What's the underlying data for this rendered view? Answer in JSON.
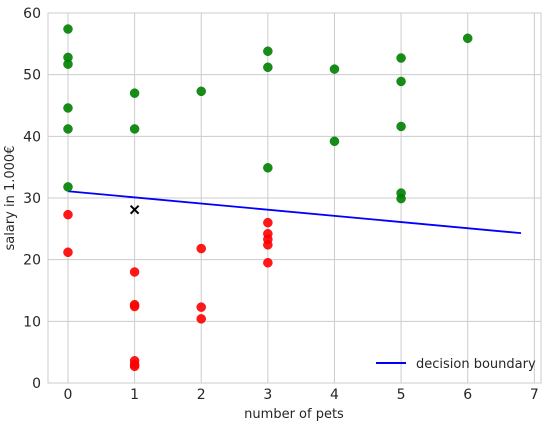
{
  "chart_data": {
    "type": "scatter",
    "title": "",
    "xlabel": "number of pets",
    "ylabel": "salary in 1.000€",
    "xlim": [
      -0.3,
      7.1
    ],
    "ylim": [
      0,
      60
    ],
    "xticks": [
      0,
      1,
      2,
      3,
      4,
      5,
      6,
      7
    ],
    "yticks": [
      0,
      10,
      20,
      30,
      40,
      50,
      60
    ],
    "grid": true,
    "legend_position": "bottom-right",
    "series": [
      {
        "color": "#008000",
        "marker": "circle",
        "points": [
          [
            0,
            57.4
          ],
          [
            0,
            52.8
          ],
          [
            0,
            51.7
          ],
          [
            0,
            44.6
          ],
          [
            0,
            41.2
          ],
          [
            0,
            31.8
          ],
          [
            1,
            47.0
          ],
          [
            1,
            41.2
          ],
          [
            2,
            47.3
          ],
          [
            3,
            53.8
          ],
          [
            3,
            51.2
          ],
          [
            3,
            34.9
          ],
          [
            4,
            50.9
          ],
          [
            4,
            39.2
          ],
          [
            5,
            52.7
          ],
          [
            5,
            48.9
          ],
          [
            5,
            41.6
          ],
          [
            5,
            30.8
          ],
          [
            5,
            29.9
          ],
          [
            6,
            55.9
          ]
        ]
      },
      {
        "color": "#ff0000",
        "marker": "circle",
        "points": [
          [
            0,
            27.3
          ],
          [
            0,
            21.2
          ],
          [
            1,
            18.0
          ],
          [
            1,
            12.7
          ],
          [
            1,
            12.4
          ],
          [
            1,
            3.6
          ],
          [
            1,
            3.0
          ],
          [
            1,
            2.7
          ],
          [
            2,
            21.8
          ],
          [
            2,
            12.3
          ],
          [
            2,
            10.4
          ],
          [
            3,
            26.0
          ],
          [
            3,
            24.2
          ],
          [
            3,
            23.3
          ],
          [
            3,
            22.4
          ],
          [
            3,
            19.5
          ]
        ]
      },
      {
        "color": "#000000",
        "marker": "x",
        "points": [
          [
            1,
            28.1
          ]
        ]
      }
    ],
    "lines": [
      {
        "name": "decision boundary",
        "color": "#0000ff",
        "x": [
          0,
          6.8
        ],
        "y": [
          31.1,
          24.3
        ]
      }
    ]
  }
}
